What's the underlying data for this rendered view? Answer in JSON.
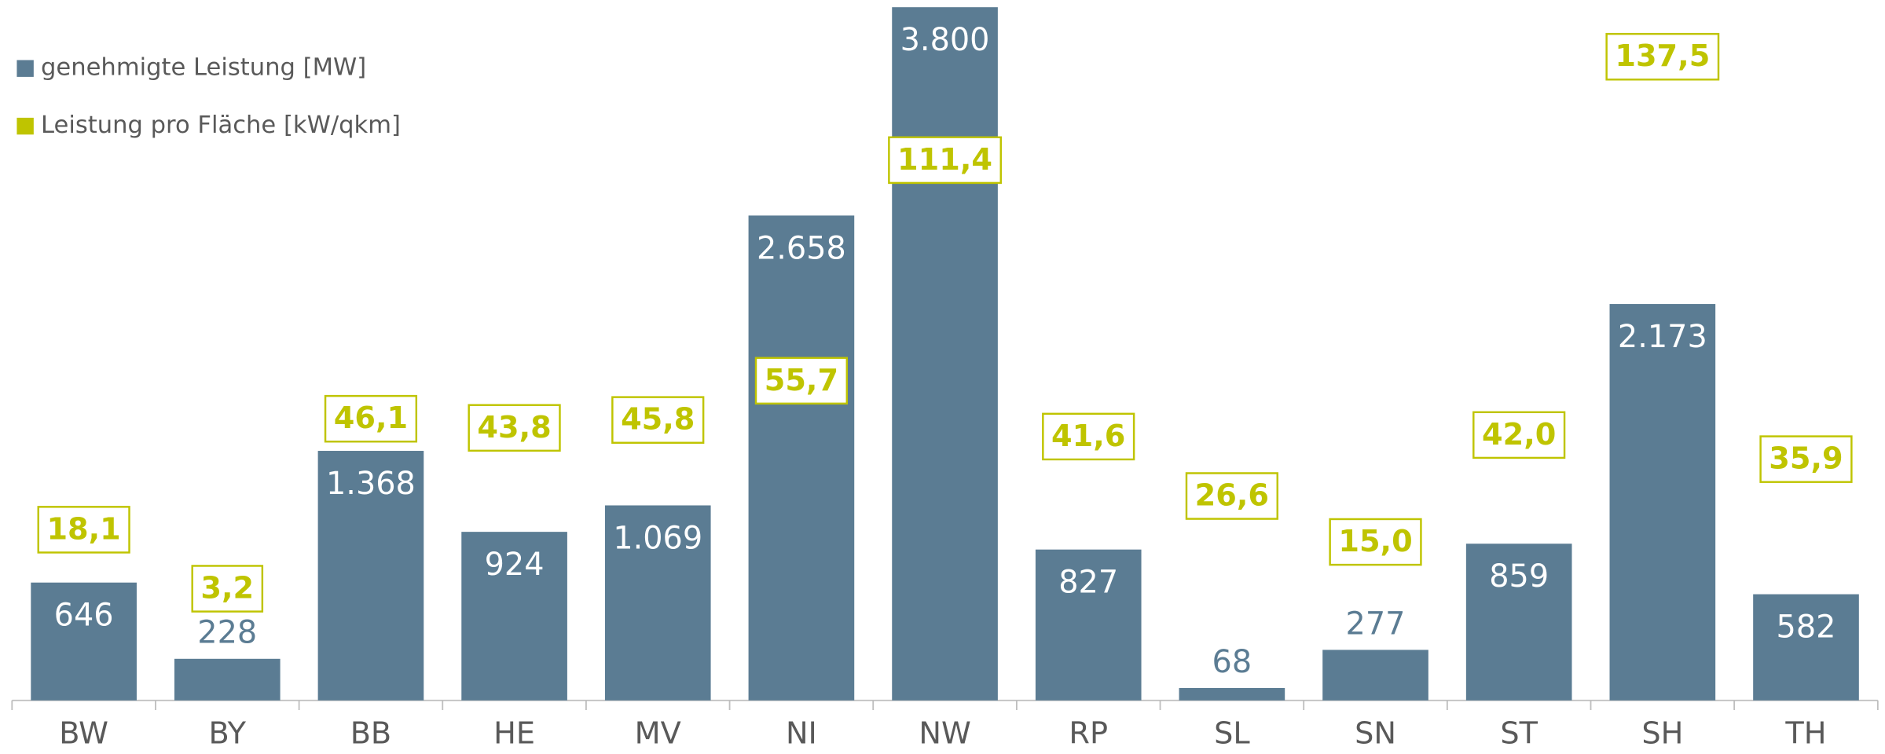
{
  "chart_data": {
    "type": "bar",
    "categories": [
      "BW",
      "BY",
      "BB",
      "HE",
      "MV",
      "NI",
      "NW",
      "RP",
      "SL",
      "SN",
      "ST",
      "SH",
      "TH"
    ],
    "series": [
      {
        "name": "genehmigte Leistung [MW]",
        "color": "#5b7c93",
        "values": [
          646,
          228,
          1368,
          924,
          1069,
          2658,
          3800,
          827,
          68,
          277,
          859,
          2173,
          582
        ],
        "value_labels": [
          "646",
          "228",
          "1.368",
          "924",
          "1.069",
          "2.658",
          "3.800",
          "827",
          "68",
          "277",
          "859",
          "2.173",
          "582"
        ]
      },
      {
        "name": "Leistung pro Fläche [kW/qkm]",
        "color": "#bfc400",
        "axis": "y2",
        "values": [
          18.1,
          3.2,
          46.1,
          43.8,
          45.8,
          55.7,
          111.4,
          41.6,
          26.6,
          15.0,
          42.0,
          137.5,
          35.9
        ],
        "value_labels": [
          "18,1",
          "3,2",
          "46,1",
          "43,8",
          "45,8",
          "55,7",
          "111,4",
          "41,6",
          "26,6",
          "15,0",
          "42,0",
          "137,5",
          "35,9"
        ]
      }
    ],
    "ylim": [
      0,
      3800
    ],
    "y2lim": [
      -25,
      150
    ],
    "legend": "top-left"
  }
}
